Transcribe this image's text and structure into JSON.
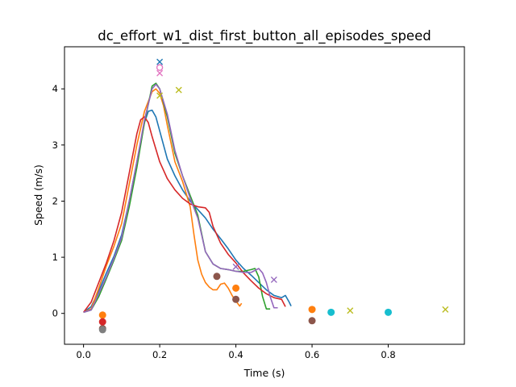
{
  "chart_data": {
    "type": "line",
    "title": "dc_effort_w1_dist_first_button_all_episodes_speed",
    "xlabel": "Time (s)",
    "ylabel": "Speed (m/s)",
    "xlim": [
      -0.05,
      1.0
    ],
    "ylim": [
      -0.55,
      4.75
    ],
    "xticks": [
      0.0,
      0.2,
      0.4,
      0.6,
      0.8
    ],
    "xtick_labels": [
      "0.0",
      "0.2",
      "0.4",
      "0.6",
      "0.8"
    ],
    "yticks": [
      0,
      1,
      2,
      3,
      4
    ],
    "ytick_labels": [
      "0",
      "1",
      "2",
      "3",
      "4"
    ],
    "grid": false,
    "legend": "none",
    "series": [
      {
        "color": "#1f77b4",
        "points": [
          [
            0.0,
            0.02
          ],
          [
            0.02,
            0.12
          ],
          [
            0.04,
            0.4
          ],
          [
            0.06,
            0.72
          ],
          [
            0.08,
            1.02
          ],
          [
            0.1,
            1.4
          ],
          [
            0.12,
            2.0
          ],
          [
            0.14,
            2.7
          ],
          [
            0.16,
            3.4
          ],
          [
            0.17,
            3.6
          ],
          [
            0.18,
            3.62
          ],
          [
            0.19,
            3.5
          ],
          [
            0.2,
            3.25
          ],
          [
            0.22,
            2.75
          ],
          [
            0.24,
            2.45
          ],
          [
            0.26,
            2.2
          ],
          [
            0.28,
            2.0
          ],
          [
            0.3,
            1.85
          ],
          [
            0.32,
            1.7
          ],
          [
            0.34,
            1.5
          ],
          [
            0.36,
            1.33
          ],
          [
            0.38,
            1.15
          ],
          [
            0.4,
            0.95
          ],
          [
            0.42,
            0.8
          ],
          [
            0.44,
            0.68
          ],
          [
            0.46,
            0.55
          ],
          [
            0.48,
            0.42
          ],
          [
            0.5,
            0.32
          ],
          [
            0.52,
            0.28
          ],
          [
            0.53,
            0.32
          ],
          [
            0.54,
            0.2
          ],
          [
            0.545,
            0.13
          ]
        ],
        "markers": [
          {
            "x": 0.65,
            "y": 0.02,
            "marker": "o",
            "color": "#17becf"
          },
          {
            "x": 0.8,
            "y": 0.02,
            "marker": "o",
            "color": "#17becf"
          },
          {
            "x": 0.2,
            "y": 4.48,
            "marker": "x",
            "color": "#1f77b4"
          }
        ]
      },
      {
        "color": "#ff7f0e",
        "points": [
          [
            0.0,
            0.02
          ],
          [
            0.02,
            0.08
          ],
          [
            0.04,
            0.45
          ],
          [
            0.06,
            0.85
          ],
          [
            0.08,
            1.2
          ],
          [
            0.1,
            1.6
          ],
          [
            0.12,
            2.3
          ],
          [
            0.14,
            3.0
          ],
          [
            0.16,
            3.6
          ],
          [
            0.18,
            3.95
          ],
          [
            0.19,
            4.0
          ],
          [
            0.2,
            3.92
          ],
          [
            0.21,
            3.7
          ],
          [
            0.22,
            3.35
          ],
          [
            0.24,
            2.7
          ],
          [
            0.26,
            2.35
          ],
          [
            0.28,
            1.9
          ],
          [
            0.29,
            1.4
          ],
          [
            0.3,
            0.95
          ],
          [
            0.31,
            0.7
          ],
          [
            0.32,
            0.55
          ],
          [
            0.33,
            0.47
          ],
          [
            0.34,
            0.42
          ],
          [
            0.35,
            0.42
          ],
          [
            0.36,
            0.52
          ],
          [
            0.37,
            0.54
          ],
          [
            0.38,
            0.45
          ],
          [
            0.39,
            0.32
          ],
          [
            0.4,
            0.22
          ],
          [
            0.41,
            0.13
          ],
          [
            0.415,
            0.18
          ]
        ],
        "markers": [
          {
            "x": 0.05,
            "y": -0.03,
            "marker": "o",
            "color": "#ff7f0e"
          },
          {
            "x": 0.4,
            "y": 0.45,
            "marker": "o",
            "color": "#ff7f0e"
          },
          {
            "x": 0.6,
            "y": 0.07,
            "marker": "o",
            "color": "#ff7f0e"
          }
        ]
      },
      {
        "color": "#2ca02c",
        "points": [
          [
            0.0,
            0.02
          ],
          [
            0.02,
            0.06
          ],
          [
            0.04,
            0.3
          ],
          [
            0.06,
            0.62
          ],
          [
            0.08,
            0.95
          ],
          [
            0.1,
            1.3
          ],
          [
            0.12,
            1.9
          ],
          [
            0.14,
            2.6
          ],
          [
            0.16,
            3.4
          ],
          [
            0.18,
            4.05
          ],
          [
            0.19,
            4.1
          ],
          [
            0.2,
            4.0
          ],
          [
            0.22,
            3.5
          ],
          [
            0.24,
            2.85
          ],
          [
            0.26,
            2.45
          ],
          [
            0.28,
            2.1
          ],
          [
            0.3,
            1.75
          ],
          [
            0.32,
            1.1
          ],
          [
            0.34,
            0.88
          ],
          [
            0.36,
            0.8
          ],
          [
            0.38,
            0.78
          ],
          [
            0.4,
            0.75
          ],
          [
            0.42,
            0.75
          ],
          [
            0.44,
            0.78
          ],
          [
            0.45,
            0.8
          ],
          [
            0.46,
            0.65
          ],
          [
            0.47,
            0.3
          ],
          [
            0.48,
            0.08
          ],
          [
            0.49,
            0.08
          ]
        ],
        "markers": []
      },
      {
        "color": "#d62728",
        "points": [
          [
            0.0,
            0.02
          ],
          [
            0.02,
            0.2
          ],
          [
            0.04,
            0.55
          ],
          [
            0.06,
            0.9
          ],
          [
            0.08,
            1.3
          ],
          [
            0.1,
            1.8
          ],
          [
            0.12,
            2.5
          ],
          [
            0.14,
            3.2
          ],
          [
            0.15,
            3.45
          ],
          [
            0.16,
            3.5
          ],
          [
            0.17,
            3.4
          ],
          [
            0.18,
            3.15
          ],
          [
            0.2,
            2.7
          ],
          [
            0.22,
            2.4
          ],
          [
            0.24,
            2.2
          ],
          [
            0.26,
            2.05
          ],
          [
            0.28,
            1.95
          ],
          [
            0.3,
            1.9
          ],
          [
            0.32,
            1.88
          ],
          [
            0.33,
            1.8
          ],
          [
            0.34,
            1.55
          ],
          [
            0.36,
            1.25
          ],
          [
            0.38,
            1.05
          ],
          [
            0.4,
            0.9
          ],
          [
            0.42,
            0.72
          ],
          [
            0.44,
            0.58
          ],
          [
            0.46,
            0.45
          ],
          [
            0.48,
            0.35
          ],
          [
            0.5,
            0.28
          ],
          [
            0.52,
            0.25
          ],
          [
            0.53,
            0.12
          ]
        ],
        "markers": [
          {
            "x": 0.05,
            "y": -0.15,
            "marker": "o",
            "color": "#d62728"
          }
        ]
      },
      {
        "color": "#9467bd",
        "points": [
          [
            0.0,
            0.02
          ],
          [
            0.02,
            0.06
          ],
          [
            0.04,
            0.35
          ],
          [
            0.06,
            0.65
          ],
          [
            0.08,
            0.98
          ],
          [
            0.1,
            1.35
          ],
          [
            0.12,
            2.0
          ],
          [
            0.14,
            2.7
          ],
          [
            0.16,
            3.45
          ],
          [
            0.18,
            4.0
          ],
          [
            0.19,
            4.08
          ],
          [
            0.2,
            4.0
          ],
          [
            0.22,
            3.55
          ],
          [
            0.24,
            2.9
          ],
          [
            0.26,
            2.45
          ],
          [
            0.28,
            2.05
          ],
          [
            0.3,
            1.7
          ],
          [
            0.32,
            1.1
          ],
          [
            0.34,
            0.88
          ],
          [
            0.36,
            0.8
          ],
          [
            0.38,
            0.78
          ],
          [
            0.4,
            0.75
          ],
          [
            0.42,
            0.73
          ],
          [
            0.44,
            0.73
          ],
          [
            0.46,
            0.8
          ],
          [
            0.47,
            0.72
          ],
          [
            0.48,
            0.55
          ],
          [
            0.49,
            0.3
          ],
          [
            0.5,
            0.1
          ],
          [
            0.51,
            0.1
          ]
        ],
        "markers": [
          {
            "x": 0.2,
            "y": 4.28,
            "marker": "x",
            "color": "#e377c2"
          },
          {
            "x": 0.2,
            "y": 4.38,
            "marker": "o_open",
            "color": "#e377c2"
          },
          {
            "x": 0.4,
            "y": 0.83,
            "marker": "x",
            "color": "#9467bd"
          },
          {
            "x": 0.5,
            "y": 0.6,
            "marker": "x",
            "color": "#9467bd"
          }
        ]
      }
    ],
    "extra_markers": [
      {
        "x": 0.05,
        "y": -0.27,
        "marker": "o",
        "color": "#8c564b"
      },
      {
        "x": 0.05,
        "y": -0.29,
        "marker": "o",
        "color": "#7f7f7f"
      },
      {
        "x": 0.35,
        "y": 0.66,
        "marker": "o",
        "color": "#8c564b"
      },
      {
        "x": 0.4,
        "y": 0.25,
        "marker": "o",
        "color": "#8c564b"
      },
      {
        "x": 0.6,
        "y": -0.13,
        "marker": "o",
        "color": "#8c564b"
      },
      {
        "x": 0.2,
        "y": 3.88,
        "marker": "x",
        "color": "#bcbd22"
      },
      {
        "x": 0.25,
        "y": 3.98,
        "marker": "x",
        "color": "#bcbd22"
      },
      {
        "x": 0.7,
        "y": 0.05,
        "marker": "x",
        "color": "#bcbd22"
      },
      {
        "x": 0.95,
        "y": 0.07,
        "marker": "x",
        "color": "#bcbd22"
      }
    ]
  }
}
